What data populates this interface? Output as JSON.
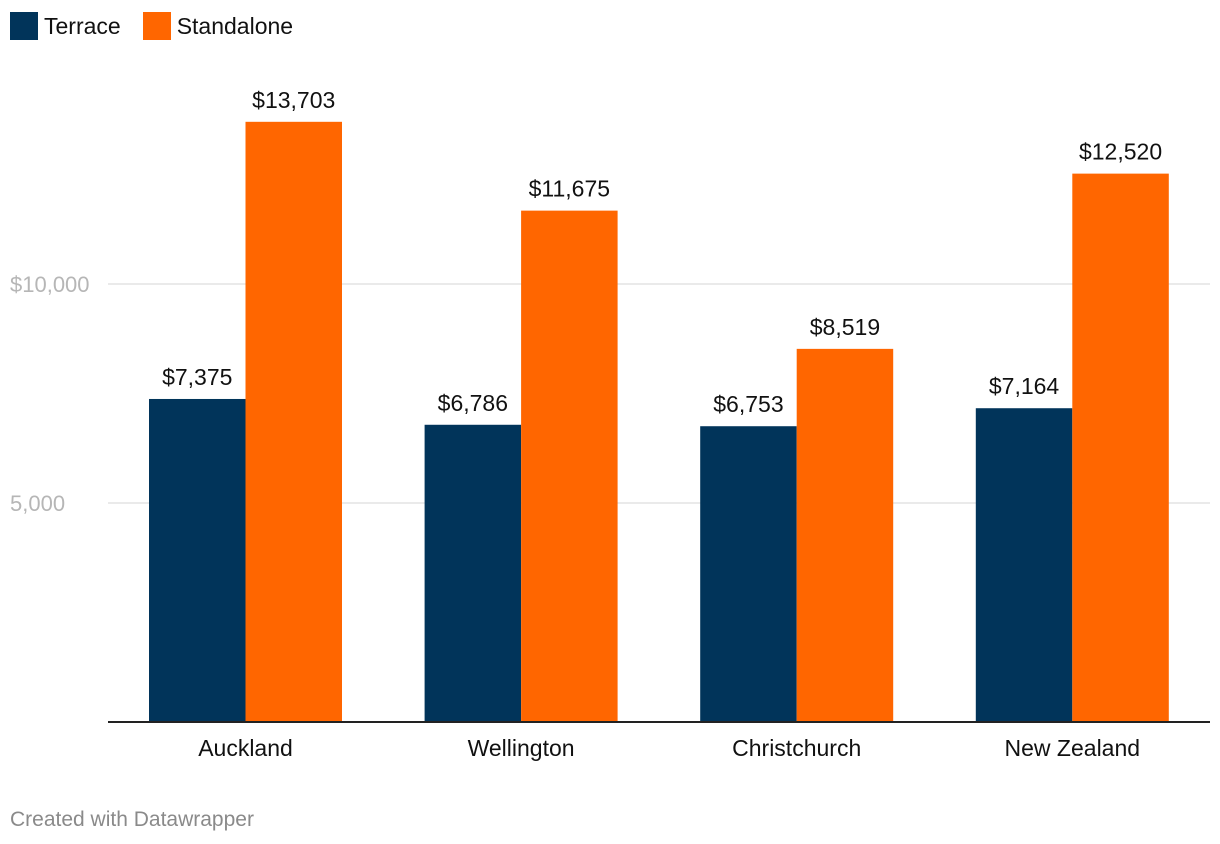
{
  "chart_data": {
    "type": "bar",
    "categories": [
      "Auckland",
      "Wellington",
      "Christchurch",
      "New Zealand"
    ],
    "series": [
      {
        "name": "Terrace",
        "color": "#01345a",
        "values": [
          7375,
          6786,
          6753,
          7164
        ],
        "labels": [
          "$7,375",
          "$6,786",
          "$6,753",
          "$7,164"
        ]
      },
      {
        "name": "Standalone",
        "color": "#ff6600",
        "values": [
          13703,
          11675,
          8519,
          12520
        ],
        "labels": [
          "$13,703",
          "$11,675",
          "$8,519",
          "$12,520"
        ]
      }
    ],
    "y_ticks": [
      {
        "value": 10000,
        "label": "$10,000"
      },
      {
        "value": 5000,
        "label": "5,000"
      }
    ],
    "ylim": [
      0,
      15000
    ],
    "grid": true,
    "legend_position": "top-left"
  },
  "footer": {
    "text": "Created with Datawrapper"
  }
}
